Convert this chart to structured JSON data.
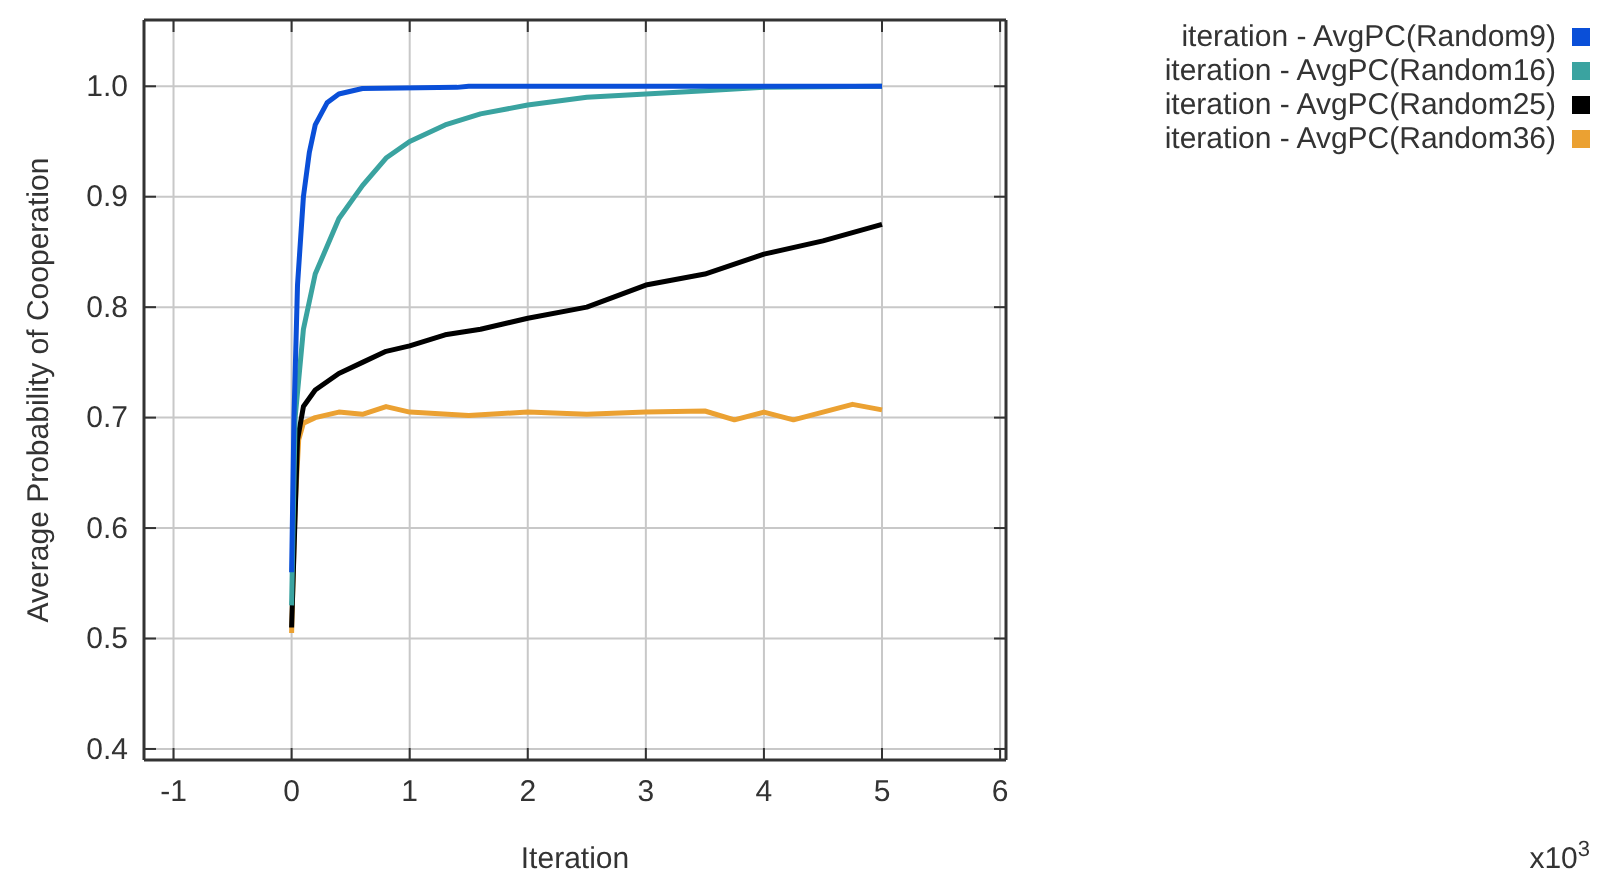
{
  "chart_data": {
    "type": "line",
    "xlabel": "Iteration",
    "ylabel": "Average Probability of Cooperation",
    "xlim": [
      -1.25,
      6.05
    ],
    "xticks": [
      -1,
      0,
      1,
      2,
      3,
      4,
      5,
      6
    ],
    "ylim": [
      0.39,
      1.06
    ],
    "yticks": [
      {
        "value": 0.4,
        "label": "0.4"
      },
      {
        "value": 0.5,
        "label": "0.5"
      },
      {
        "value": 0.6,
        "label": "0.6"
      },
      {
        "value": 0.7,
        "label": "0.7"
      },
      {
        "value": 0.8,
        "label": "0.8"
      },
      {
        "value": 0.9,
        "label": "0.9"
      },
      {
        "value": 1.0,
        "label": "1.0"
      }
    ],
    "grid": true,
    "legend": "top right",
    "marker": "none",
    "line_style": "solid",
    "annotations": [
      "x10$^{3}$"
    ],
    "series": [
      {
        "name": "iteration - AvgPC(Random9)",
        "color": "#0a4fd8",
        "x": [
          0,
          0.02,
          0.05,
          0.1,
          0.15,
          0.2,
          0.3,
          0.4,
          0.6,
          1.4,
          1.5,
          5
        ],
        "values": [
          0.56,
          0.7,
          0.82,
          0.9,
          0.94,
          0.965,
          0.985,
          0.993,
          0.998,
          0.999,
          1.0,
          1.0
        ]
      },
      {
        "name": "iteration - AvgPC(Random16)",
        "color": "#3aa3a0",
        "x": [
          0,
          0.03,
          0.1,
          0.2,
          0.4,
          0.6,
          0.8,
          1.0,
          1.3,
          1.6,
          2,
          2.5,
          3,
          3.5,
          4,
          5
        ],
        "values": [
          0.53,
          0.7,
          0.78,
          0.83,
          0.88,
          0.91,
          0.935,
          0.95,
          0.965,
          0.975,
          0.983,
          0.99,
          0.993,
          0.996,
          0.999,
          1.0
        ]
      },
      {
        "name": "iteration - AvgPC(Random25)",
        "color": "#000000",
        "x": [
          0,
          0.05,
          0.1,
          0.2,
          0.4,
          0.6,
          0.8,
          1.0,
          1.3,
          1.6,
          2.0,
          2.5,
          3.0,
          3.5,
          4.0,
          4.5,
          5.0
        ],
        "values": [
          0.51,
          0.68,
          0.71,
          0.725,
          0.74,
          0.75,
          0.76,
          0.765,
          0.775,
          0.78,
          0.79,
          0.8,
          0.82,
          0.83,
          0.848,
          0.86,
          0.875
        ]
      },
      {
        "name": "iteration - AvgPC(Random36)",
        "color": "#eba132",
        "x": [
          0,
          0.03,
          0.06,
          0.1,
          0.2,
          0.4,
          0.6,
          0.8,
          1,
          1.5,
          2,
          2.5,
          3,
          3.5,
          3.75,
          4,
          4.25,
          4.5,
          4.75,
          5
        ],
        "values": [
          0.505,
          0.62,
          0.68,
          0.695,
          0.7,
          0.705,
          0.703,
          0.71,
          0.705,
          0.702,
          0.705,
          0.703,
          0.705,
          0.706,
          0.698,
          0.705,
          0.698,
          0.705,
          0.712,
          0.707
        ]
      }
    ]
  }
}
